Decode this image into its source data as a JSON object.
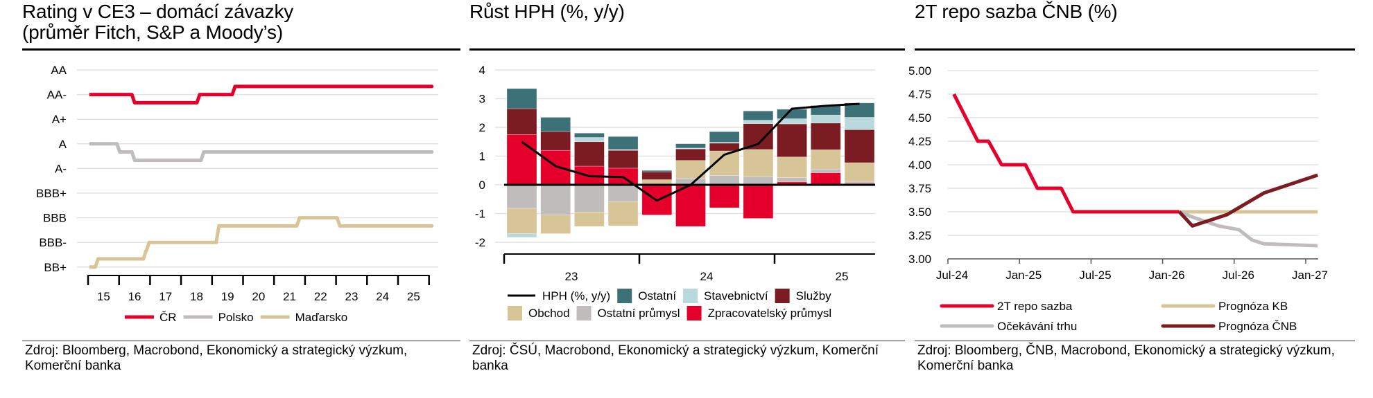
{
  "panels": [
    {
      "title_lines": [
        "Rating v CE3 – domácí závazky",
        "(průměr Fitch, S&P a Moody’s)"
      ],
      "source": "Zdroj: Bloomberg, Macrobond, Ekonomický a strategický výzkum, Komerční banka"
    },
    {
      "title_lines": [
        "Růst HPH (%, y/y)"
      ],
      "source": "Zdroj: ČSÚ, Macrobond, Ekonomický a strategický výzkum, Komerční banka"
    },
    {
      "title_lines": [
        "2T repo sazba ČNB (%)"
      ],
      "source": "Zdroj: Bloomberg, ČNB, Macrobond, Ekonomický a strategický výzkum, Komerční banka"
    }
  ],
  "colors": {
    "red": "#e4002b",
    "gray": "#c0bcbb",
    "beige": "#d8c597",
    "teal": "#3d7178",
    "lightblue": "#b9dadd",
    "darkred": "#7b1c22",
    "grid": "#e2e2e2",
    "axis": "#000000"
  },
  "chart_data": [
    {
      "type": "line",
      "title": "Rating v CE3 – domácí závazky (průměr Fitch, S&P a Moody’s)",
      "ylabel": "",
      "xlabel": "",
      "y_categories": [
        "BB+",
        "BBB-",
        "BBB",
        "BBB+",
        "A-",
        "A",
        "A+",
        "AA-",
        "AA"
      ],
      "ylim": [
        0,
        8
      ],
      "x_tick_labels": [
        "15",
        "16",
        "17",
        "18",
        "19",
        "20",
        "21",
        "22",
        "23",
        "24",
        "25"
      ],
      "xlim": [
        2015,
        2026
      ],
      "grid": true,
      "legend_position": "bottom",
      "series": [
        {
          "name": "ČR",
          "color": "#e4002b",
          "step": true,
          "x": [
            2015.04,
            2016.48,
            2018.58,
            2019.72,
            2026.07
          ],
          "y": [
            7,
            6.67,
            7,
            7.33,
            7.33
          ]
        },
        {
          "name": "Polsko",
          "color": "#c0bcbb",
          "step": true,
          "x": [
            2015.04,
            2016.0,
            2016.48,
            2018.71,
            2026.07
          ],
          "y": [
            5,
            4.67,
            4.33,
            4.67,
            4.67
          ]
        },
        {
          "name": "Maďarsko",
          "color": "#d8c597",
          "step": true,
          "x": [
            2015.04,
            2015.3,
            2016.85,
            2016.95,
            2019.2,
            2021.8,
            2023.1,
            2026.07
          ],
          "y": [
            0,
            0.33,
            0.67,
            1.0,
            1.67,
            2.0,
            1.67,
            1.67
          ]
        }
      ]
    },
    {
      "type": "bar",
      "stacked": true,
      "title": "Růst HPH (%, y/y)",
      "ylim": [
        -2,
        4
      ],
      "y_ticks": [
        4,
        3,
        2,
        1,
        0,
        -1,
        -2
      ],
      "grid": true,
      "legend_position": "bottom",
      "categories": [
        "23Q1",
        "23Q2",
        "23Q3",
        "23Q4",
        "24Q1",
        "24Q2",
        "24Q3",
        "24Q4",
        "25Q1",
        "25Q2",
        "25Q3"
      ],
      "x_group_labels": [
        "23",
        "24",
        "25"
      ],
      "series": [
        {
          "name": "Zpracovatelský průmysl",
          "color": "#e4002b",
          "values": [
            1.75,
            1.2,
            0.65,
            0.58,
            -1.05,
            -1.45,
            -0.8,
            -1.17,
            0.1,
            0.42,
            0.05
          ]
        },
        {
          "name": "Ostatní průmysl",
          "color": "#c0bcbb",
          "values": [
            -0.82,
            -1.05,
            -0.95,
            -0.58,
            0.0,
            0.23,
            0.33,
            0.28,
            0.15,
            0.13,
            0.07
          ]
        },
        {
          "name": "Obchod",
          "color": "#d8c597",
          "values": [
            -0.88,
            -0.65,
            -0.5,
            -0.85,
            0.18,
            0.62,
            0.85,
            0.95,
            0.72,
            0.67,
            0.65
          ]
        },
        {
          "name": "Služby",
          "color": "#7b1c22",
          "values": [
            0.9,
            0.65,
            0.85,
            0.62,
            0.27,
            0.4,
            0.27,
            0.9,
            1.15,
            0.93,
            1.15
          ]
        },
        {
          "name": "Stavebnictví",
          "color": "#b9dadd",
          "values": [
            -0.13,
            0.0,
            0.15,
            0.03,
            0.0,
            0.03,
            0.03,
            0.12,
            0.18,
            0.28,
            0.43
          ]
        },
        {
          "name": "Ostatní",
          "color": "#3d7178",
          "values": [
            0.7,
            0.5,
            0.15,
            0.45,
            0.05,
            0.15,
            0.37,
            0.32,
            0.33,
            0.33,
            0.5
          ]
        }
      ],
      "line": {
        "name": "HPH (%, y/y)",
        "color": "#000000",
        "values": [
          1.5,
          0.65,
          0.3,
          0.27,
          -0.55,
          0.0,
          1.05,
          1.42,
          2.65,
          2.75,
          2.82
        ]
      },
      "legend_order": [
        [
          "HPH (%, y/y)",
          "Ostatní",
          "Stavebnictví",
          "Služby"
        ],
        [
          "Obchod",
          "Ostatní průmysl",
          "Zpracovatelský průmysl"
        ]
      ]
    },
    {
      "type": "line",
      "title": "2T repo sazba ČNB (%)",
      "ylim": [
        3.0,
        5.0
      ],
      "y_ticks": [
        "5.00",
        "4.75",
        "4.50",
        "4.25",
        "4.00",
        "3.75",
        "3.50",
        "3.25",
        "3.00"
      ],
      "x_tick_labels": [
        "Jul-24",
        "Jan-25",
        "Jul-25",
        "Jan-26",
        "Jul-26",
        "Jan-27"
      ],
      "x_unit": "months since Jul-24",
      "xlim": [
        0,
        31
      ],
      "grid": true,
      "legend_position": "bottom",
      "series": [
        {
          "name": "2T repo sazba",
          "color": "#e4002b",
          "x": [
            0.5,
            2.5,
            3.4,
            4.5,
            6.5,
            7.5,
            9.5,
            10.5,
            19.4
          ],
          "y": [
            4.75,
            4.25,
            4.25,
            4.0,
            4.0,
            3.75,
            3.75,
            3.5,
            3.5
          ]
        },
        {
          "name": "Očekávání trhu",
          "color": "#c0bcbb",
          "x": [
            19.4,
            20.6,
            22.7,
            24.4,
            25.5,
            26.5,
            28.8,
            31
          ],
          "y": [
            3.5,
            3.44,
            3.35,
            3.31,
            3.2,
            3.16,
            3.15,
            3.14
          ]
        },
        {
          "name": "Prognóza KB",
          "color": "#d8c597",
          "x": [
            19.4,
            31
          ],
          "y": [
            3.5,
            3.5
          ]
        },
        {
          "name": "Prognóza ČNB",
          "color": "#7b1c22",
          "x": [
            19.4,
            20.5,
            23.4,
            26.5,
            31
          ],
          "y": [
            3.5,
            3.35,
            3.47,
            3.7,
            3.89
          ]
        }
      ],
      "legend_order": [
        [
          "2T repo sazba",
          "Prognóza KB"
        ],
        [
          "Očekávání trhu",
          "Prognóza ČNB"
        ]
      ]
    }
  ]
}
